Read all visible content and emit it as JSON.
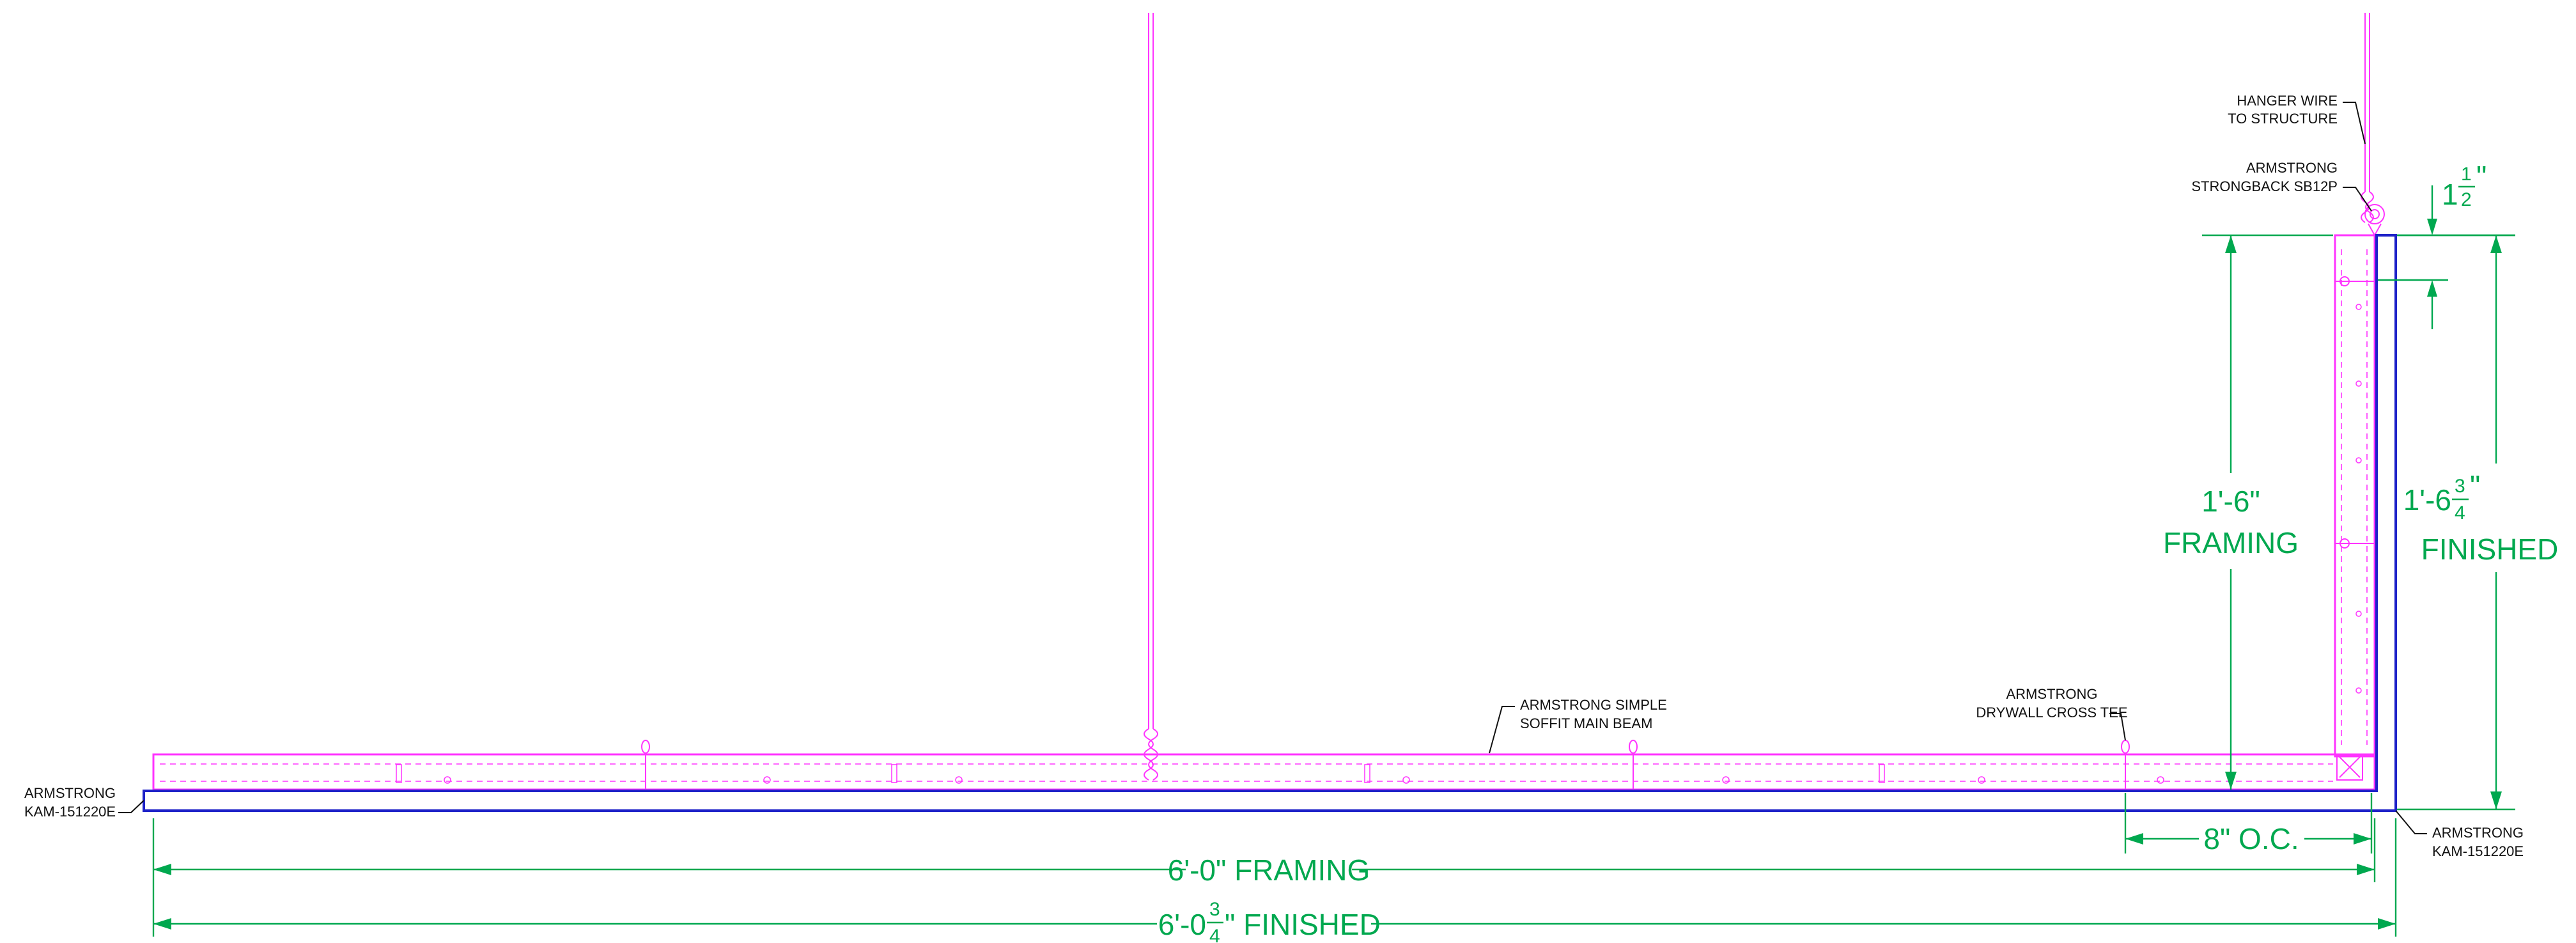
{
  "labels": {
    "hanger_wire_1": "HANGER WIRE",
    "hanger_wire_2": "TO STRUCTURE",
    "strongback_1": "ARMSTRONG",
    "strongback_2": "STRONGBACK SB12P",
    "main_beam_1": "ARMSTRONG SIMPLE",
    "main_beam_2": "SOFFIT MAIN BEAM",
    "cross_tee_1": "ARMSTRONG",
    "cross_tee_2": "DRYWALL CROSS TEE",
    "kam_left_1": "ARMSTRONG",
    "kam_left_2": "KAM-151220E",
    "kam_right_1": "ARMSTRONG",
    "kam_right_2": "KAM-151220E"
  },
  "dimensions": {
    "offset_whole": "1",
    "offset_num": "1",
    "offset_den": "2",
    "offset_unit": "\"",
    "framing_height": "1'-6\"",
    "framing_height_label": "FRAMING",
    "finished_height_prefix": "1'-6",
    "finished_height_num": "3",
    "finished_height_den": "4",
    "finished_height_unit": "\"",
    "finished_height_label": "FINISHED",
    "spacing": "8\" O.C.",
    "framing_width": "6'-0\" FRAMING",
    "finished_width_prefix": "6'-0",
    "finished_width_num": "3",
    "finished_width_den": "4",
    "finished_width_suffix": "\" FINISHED"
  },
  "colors": {
    "framing": "#ff33ff",
    "finish_board": "#1e22c8",
    "dimension": "#00a84f",
    "annotation": "#111111"
  }
}
